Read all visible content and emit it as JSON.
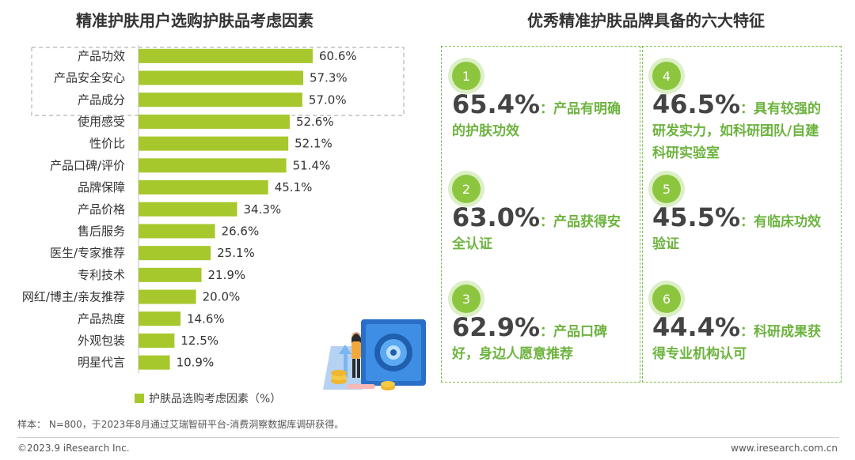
{
  "left_title": "精准护肤用户选购护肤品考虑因素",
  "right_title": "优秀精准护肤品牌具备的六大特征",
  "legend_label": "护肤品选购考虑因素（%）",
  "note": "样本： N=800，于2023年8月通过艾瑞智研平台-消费洞察数据库调研获得。",
  "footer_left": "©2023.9 iResearch Inc.",
  "footer_right": "www.iresearch.com.cn",
  "colors": {
    "bar": "#a6c82d",
    "accent_green": "#6db33f",
    "badge": "#8cc63f"
  },
  "chart_data": {
    "type": "bar",
    "orientation": "horizontal",
    "categories": [
      "产品功效",
      "产品安全安心",
      "产品成分",
      "使用感受",
      "性价比",
      "产品口碑/评价",
      "品牌保障",
      "产品价格",
      "售后服务",
      "医生/专家推荐",
      "专利技术",
      "网红/博主/亲友推荐",
      "产品热度",
      "外观包装",
      "明星代言"
    ],
    "values": [
      60.6,
      57.3,
      57.0,
      52.6,
      52.1,
      51.4,
      45.1,
      34.3,
      26.6,
      25.1,
      21.9,
      20.0,
      14.6,
      12.5,
      10.9
    ],
    "value_labels": [
      "60.6%",
      "57.3%",
      "57.0%",
      "52.6%",
      "52.1%",
      "51.4%",
      "45.1%",
      "34.3%",
      "26.6%",
      "25.1%",
      "21.9%",
      "20.0%",
      "14.6%",
      "12.5%",
      "10.9%"
    ],
    "series": [
      {
        "name": "护肤品选购考虑因素（%）",
        "values": [
          60.6,
          57.3,
          57.0,
          52.6,
          52.1,
          51.4,
          45.1,
          34.3,
          26.6,
          25.1,
          21.9,
          20.0,
          14.6,
          12.5,
          10.9
        ]
      }
    ],
    "highlighted_top": 3,
    "legend_position": "bottom"
  },
  "features": [
    {
      "num": "1",
      "pct": "65.4%",
      "text": "：产品有明确的护肤功效"
    },
    {
      "num": "2",
      "pct": "63.0%",
      "text": "：产品获得安全认证"
    },
    {
      "num": "3",
      "pct": "62.9%",
      "text": "：产品口碑好，身边人愿意推荐"
    },
    {
      "num": "4",
      "pct": "46.5%",
      "text": "：具有较强的研发实力，如科研团队/自建科研实验室"
    },
    {
      "num": "5",
      "pct": "45.5%",
      "text": "：有临床功效验证"
    },
    {
      "num": "6",
      "pct": "44.4%",
      "text": "：科研成果获得专业机构认可"
    }
  ]
}
